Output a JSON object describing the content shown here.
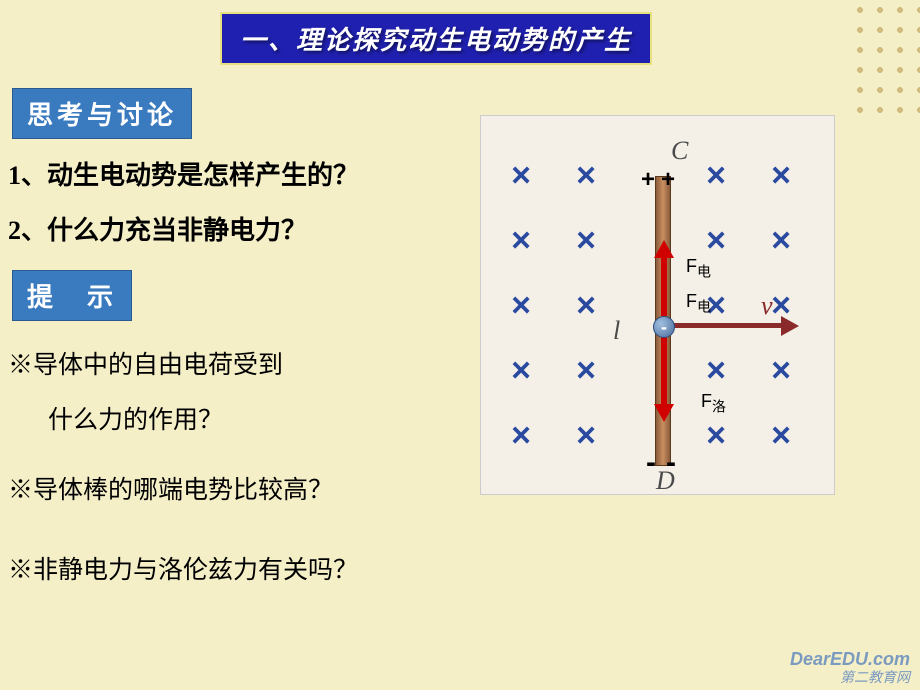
{
  "title": "一、理论探究动生电动势的产生",
  "labels": {
    "think": "思考与讨论",
    "hint": "提　示"
  },
  "questions": {
    "q1": "1、动生电动势是怎样产生的？",
    "q2": "2、什么力充当非静电力？"
  },
  "hints": {
    "h1a": "※导体中的自由电荷受到",
    "h1b": "什么力的作用？",
    "h2": "※导体棒的哪端电势比较高？",
    "h3": "※非静电力与洛伦兹力有关吗？"
  },
  "diagram": {
    "background": "#f4f0e8",
    "x_color": "#2a4aa0",
    "rod_color_a": "#8a5a3a",
    "rod_color_b": "#c89060",
    "arrow_color": "#d00000",
    "v_arrow_color": "#8a2a2a",
    "labels": {
      "C": "C",
      "D": "D",
      "l": "l",
      "v": "v",
      "plus": "+",
      "minus": "-",
      "neg": "-"
    },
    "forces": {
      "f_elec": "F",
      "f_elec_sub": "电",
      "f_lor": "F",
      "f_lor_sub": "洛"
    },
    "x_grid": {
      "cols": [
        40,
        105,
        170,
        235,
        300
      ],
      "rows": [
        60,
        125,
        190,
        255,
        320
      ]
    }
  },
  "watermark": {
    "line1": "DearEDU.com",
    "line2": "第二教育网"
  },
  "colors": {
    "bg": "#f5efc8",
    "banner_bg": "#2020b0",
    "label_bg": "#3a7abf"
  }
}
